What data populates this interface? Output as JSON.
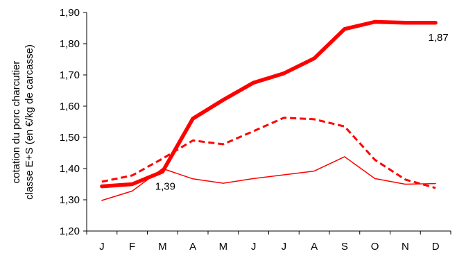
{
  "chart_data": {
    "type": "line",
    "categories": [
      "J",
      "F",
      "M",
      "A",
      "M",
      "J",
      "J",
      "A",
      "S",
      "O",
      "N",
      "D"
    ],
    "ylabel_lines": [
      "cotation du porc charcutier",
      "classe E+S  (en €/kg de carcasse)"
    ],
    "xlabel": "",
    "ylim": [
      1.2,
      1.9
    ],
    "y_ticks": [
      "1,20",
      "1,30",
      "1,40",
      "1,50",
      "1,60",
      "1,70",
      "1,80",
      "1,90"
    ],
    "grid": false,
    "legend": "none",
    "series": [
      {
        "style": "thick-solid",
        "color": "#ff0000",
        "values": [
          1.343,
          1.35,
          1.39,
          1.56,
          1.62,
          1.675,
          1.705,
          1.753,
          1.847,
          1.87,
          1.867,
          1.867
        ]
      },
      {
        "style": "dashed",
        "color": "#ff0000",
        "values": [
          1.358,
          1.378,
          1.432,
          1.49,
          1.478,
          1.52,
          1.563,
          1.558,
          1.535,
          1.428,
          1.365,
          1.338
        ]
      },
      {
        "style": "thin-solid",
        "color": "#ff0000",
        "values": [
          1.298,
          1.328,
          1.4,
          1.367,
          1.353,
          1.368,
          1.38,
          1.392,
          1.438,
          1.368,
          1.35,
          1.352
        ]
      }
    ],
    "annotations": [
      {
        "text": "1,39",
        "category_index": 2,
        "series_index": 0
      },
      {
        "text": "1,87",
        "category_index": 11,
        "series_index": 0
      }
    ]
  }
}
